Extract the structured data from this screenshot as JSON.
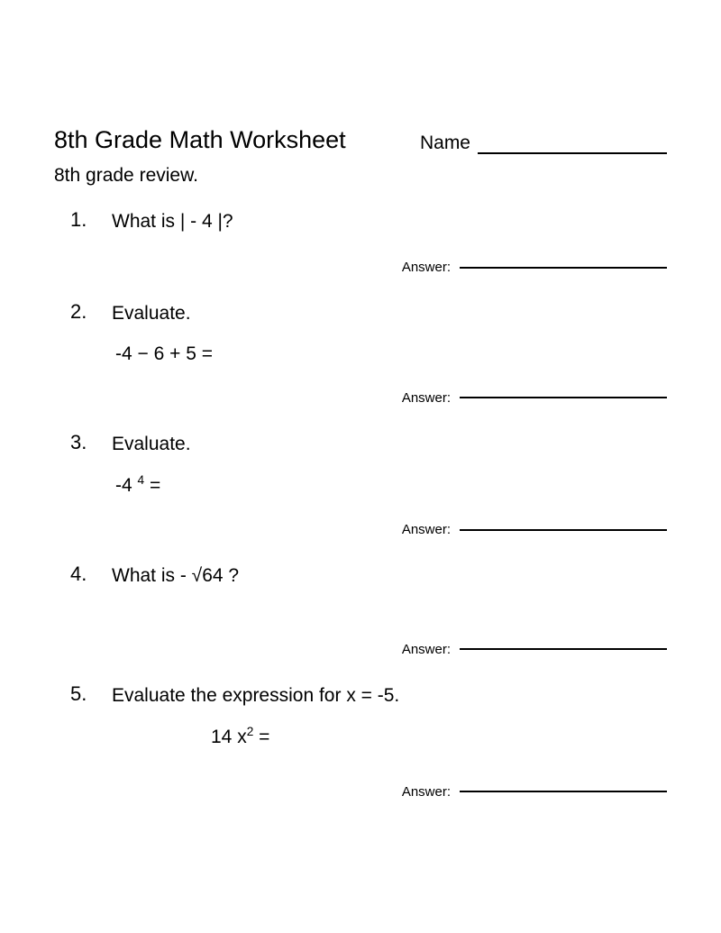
{
  "title": "8th Grade Math Worksheet",
  "name_label": "Name",
  "subtitle": "8th grade review.",
  "answer_label": "Answer:",
  "problems": [
    {
      "num": "1.",
      "text": "What is |   - 4 |?",
      "expr": ""
    },
    {
      "num": "2.",
      "text": "Evaluate.",
      "expr": "-4 − 6 + 5 ="
    },
    {
      "num": "3.",
      "text": "Evaluate.",
      "expr_html": "-4 <sup>4</sup> ="
    },
    {
      "num": "4.",
      "text": "What is - √64 ?",
      "expr": ""
    },
    {
      "num": "5.",
      "text": "Evaluate the expression for x = -5.",
      "expr_html": "14 x<sup>2</sup>  =",
      "indent": true
    }
  ],
  "colors": {
    "text": "#000000",
    "bg": "#ffffff"
  },
  "fonts": {
    "title_size": 27,
    "body_size": 21,
    "answer_size": 15
  }
}
